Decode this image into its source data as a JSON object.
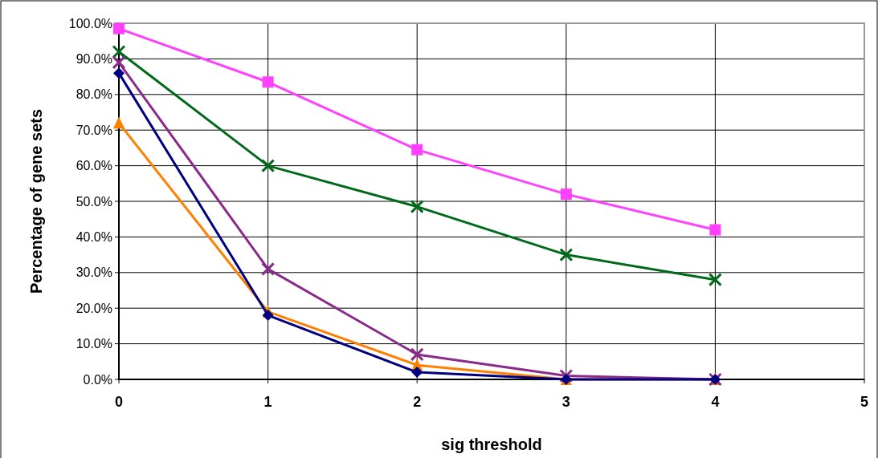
{
  "chart_data": {
    "type": "line",
    "xlabel": "sig threshold",
    "ylabel": "Percentage of gene sets",
    "x": [
      0,
      1,
      2,
      3,
      4
    ],
    "xlim": [
      0,
      5
    ],
    "xticks": [
      0,
      1,
      2,
      3,
      4,
      5
    ],
    "ylim": [
      0,
      100
    ],
    "yticks": [
      {
        "value": 0,
        "label": "0.0%"
      },
      {
        "value": 10,
        "label": "10.0%"
      },
      {
        "value": 20,
        "label": "20.0%"
      },
      {
        "value": 30,
        "label": "30.0%"
      },
      {
        "value": 40,
        "label": "40.0%"
      },
      {
        "value": 50,
        "label": "50.0%"
      },
      {
        "value": 60,
        "label": "60.0%"
      },
      {
        "value": 70,
        "label": "70.0%"
      },
      {
        "value": 80,
        "label": "80.0%"
      },
      {
        "value": 90,
        "label": "90.0%"
      },
      {
        "value": 100,
        "label": "100.0%"
      }
    ],
    "grid": true,
    "line_style": "solid",
    "series": [
      {
        "color": "#ff40ff",
        "marker": "square",
        "values": [
          98.5,
          83.5,
          64.5,
          52,
          42
        ]
      },
      {
        "color": "#ff8000",
        "marker": "triangle",
        "values": [
          72,
          19,
          4,
          0,
          0
        ]
      },
      {
        "color": "#006a1a",
        "marker": "cross",
        "values": [
          92,
          60,
          48.5,
          35,
          28
        ]
      },
      {
        "color": "#8a2a8a",
        "marker": "cross",
        "values": [
          89,
          31,
          7,
          1,
          0
        ]
      },
      {
        "color": "#000080",
        "marker": "diamond",
        "values": [
          86,
          18,
          2,
          0,
          0
        ]
      }
    ]
  }
}
